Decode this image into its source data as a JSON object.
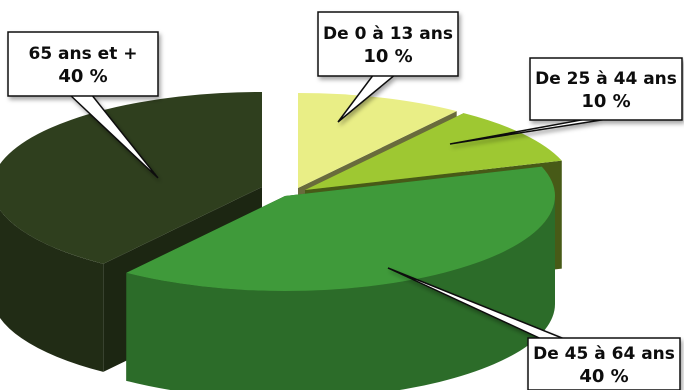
{
  "chart_data": {
    "type": "pie",
    "style": "3d-exploded",
    "slices": [
      {
        "name": "De 0 à 13 ans",
        "value": 10,
        "value_label": "10 %",
        "color": "#e9ee86"
      },
      {
        "name": "De 25 à 44 ans",
        "value": 10,
        "value_label": "10 %",
        "color": "#9ec832"
      },
      {
        "name": "De 45 à 64 ans",
        "value": 40,
        "value_label": "40 %",
        "color": "#3f9a3a"
      },
      {
        "name": "65 ans et +",
        "value": 40,
        "value_label": "40 %",
        "color": "#2f3f1e"
      }
    ]
  }
}
